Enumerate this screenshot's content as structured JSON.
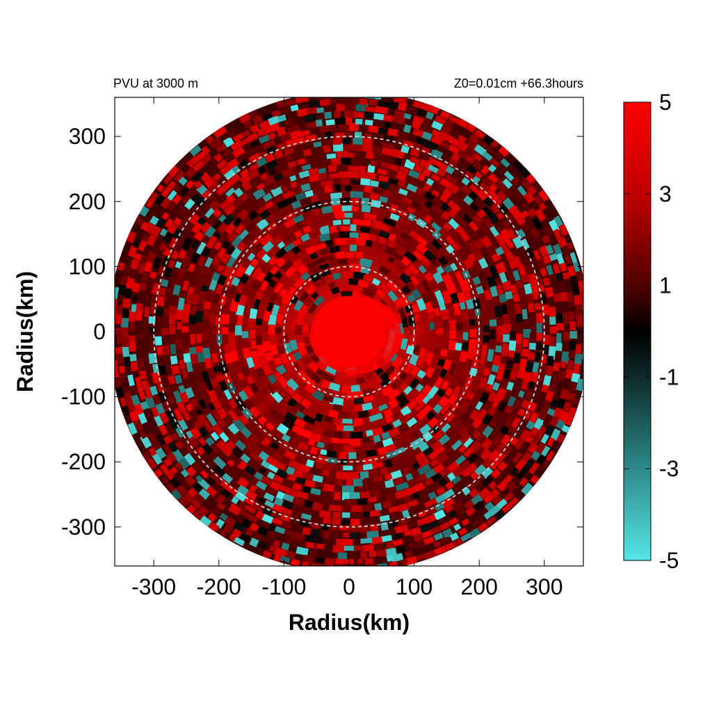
{
  "chart_data": {
    "type": "heatmap",
    "title_left": "PVU at  3000 m",
    "title_right": "Z0=0.01cm  +66.3hours",
    "xlabel": "Radius(km)",
    "ylabel": "Radius(km)",
    "xlim": [
      -360,
      360
    ],
    "ylim": [
      -360,
      360
    ],
    "x_ticks": [
      -300,
      -200,
      -100,
      0,
      100,
      200,
      300
    ],
    "y_ticks": [
      -300,
      -200,
      -100,
      0,
      100,
      200,
      300
    ],
    "x_tick_labels": [
      "-300",
      "-200",
      "-100",
      "0",
      "100",
      "200",
      "300"
    ],
    "y_tick_labels": [
      "-300",
      "-200",
      "-100",
      "0",
      "100",
      "200",
      "300"
    ],
    "domain_radius_km": 370,
    "range_rings_km": [
      100,
      200,
      300
    ],
    "colorbar": {
      "min": -5,
      "max": 5,
      "ticks": [
        5,
        3,
        1,
        -1,
        -3,
        -5
      ],
      "tick_labels": [
        "5",
        "3",
        "1",
        "-1",
        "-3",
        "-5"
      ],
      "colors": {
        "high": "#ff0000",
        "mid": "#000000",
        "low": "#55e6e6"
      }
    },
    "core_value": 5,
    "background_value": 1.2
  }
}
